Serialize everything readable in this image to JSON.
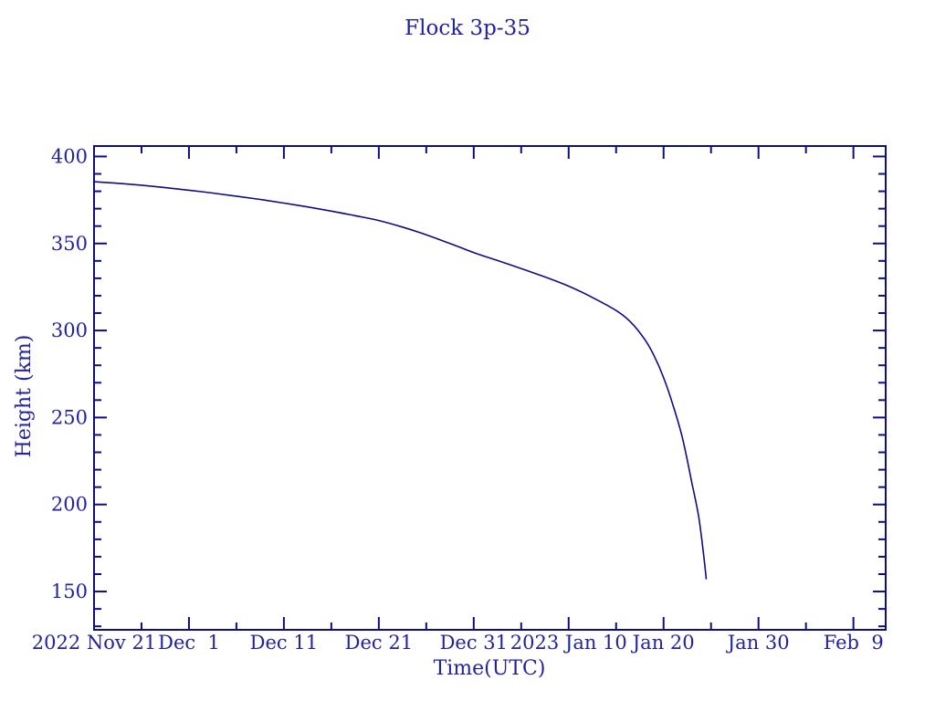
{
  "title": "Flock 3p-35",
  "colors": {
    "background": "#ffffff",
    "line": "#0d0d86",
    "text": "#2222a2"
  },
  "chart_data": {
    "type": "line",
    "title": "Flock 3p-35",
    "xlabel": "Time(UTC)",
    "ylabel": "Height (km)",
    "grid": false,
    "legend": false,
    "x_unit": "days since 2022 Nov 21",
    "xlim": [
      0,
      83.4
    ],
    "ylim": [
      128,
      406
    ],
    "x_major_ticks": [
      {
        "t": 0,
        "label": "2022 Nov 21"
      },
      {
        "t": 10,
        "label": "Dec  1"
      },
      {
        "t": 20,
        "label": "Dec 11"
      },
      {
        "t": 30,
        "label": "Dec 21"
      },
      {
        "t": 40,
        "label": "Dec 31"
      },
      {
        "t": 50,
        "label": "2023 Jan 10"
      },
      {
        "t": 60,
        "label": "Jan 20"
      },
      {
        "t": 70,
        "label": "Jan 30"
      },
      {
        "t": 80,
        "label": "Feb  9"
      }
    ],
    "x_minor_ticks": [
      5,
      15,
      25,
      35,
      45,
      55,
      65,
      75
    ],
    "y_major_ticks": [
      150,
      200,
      250,
      300,
      350,
      400
    ],
    "y_minor_ticks": [
      130,
      140,
      160,
      170,
      180,
      190,
      210,
      220,
      230,
      240,
      260,
      270,
      280,
      290,
      310,
      320,
      330,
      340,
      360,
      370,
      380,
      390
    ],
    "series": [
      {
        "name": "Flock 3p-35 height",
        "points_t_days_height_km": [
          [
            0,
            385.5
          ],
          [
            2.5,
            384.6
          ],
          [
            5,
            383.5
          ],
          [
            7.5,
            382.1
          ],
          [
            10,
            380.6
          ],
          [
            12.5,
            379.0
          ],
          [
            15,
            377.2
          ],
          [
            17.5,
            375.3
          ],
          [
            20,
            373.2
          ],
          [
            22.5,
            371.0
          ],
          [
            25,
            368.6
          ],
          [
            27.5,
            366.0
          ],
          [
            30,
            363.2
          ],
          [
            32.5,
            359.4
          ],
          [
            35,
            355.0
          ],
          [
            37.5,
            350.0
          ],
          [
            40,
            344.8
          ],
          [
            42.5,
            340.2
          ],
          [
            45,
            335.6
          ],
          [
            47.5,
            330.8
          ],
          [
            50,
            325.5
          ],
          [
            52.5,
            319.0
          ],
          [
            55,
            311.5
          ],
          [
            56.5,
            305.0
          ],
          [
            58,
            295.0
          ],
          [
            59,
            285.5
          ],
          [
            60,
            273.0
          ],
          [
            61,
            257.0
          ],
          [
            62,
            238.0
          ],
          [
            63,
            212.0
          ],
          [
            63.7,
            193.0
          ],
          [
            64.2,
            172.0
          ],
          [
            64.5,
            157.0
          ]
        ]
      }
    ]
  }
}
